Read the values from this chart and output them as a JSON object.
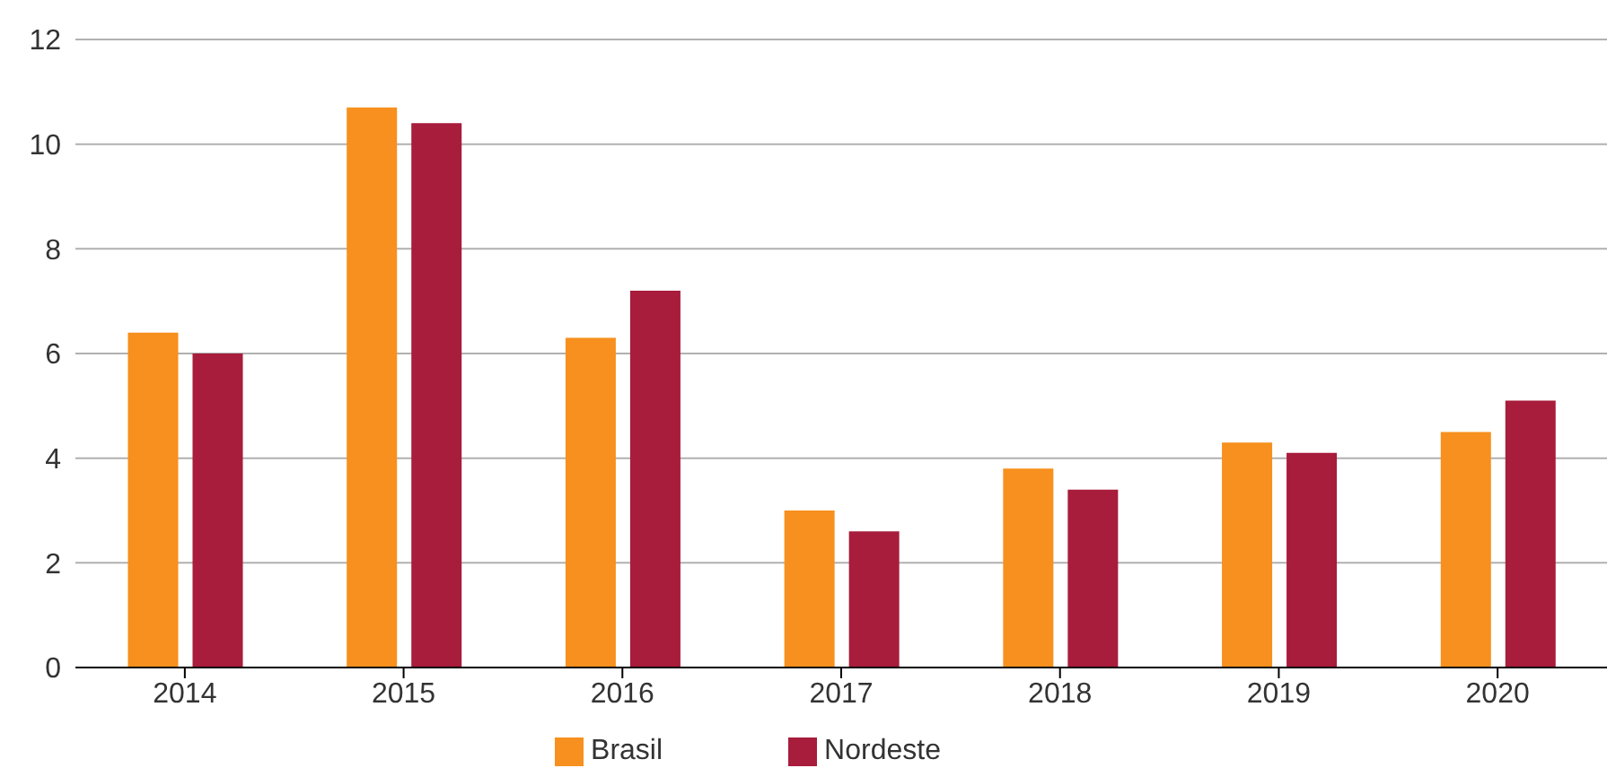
{
  "chart_data": {
    "type": "bar",
    "categories": [
      "2014",
      "2015",
      "2016",
      "2017",
      "2018",
      "2019",
      "2020"
    ],
    "series": [
      {
        "name": "Brasil",
        "color": "#f7901e",
        "values": [
          6.4,
          10.7,
          6.3,
          3.0,
          3.8,
          4.3,
          4.5
        ]
      },
      {
        "name": "Nordeste",
        "color": "#a81c3c",
        "values": [
          6.0,
          10.4,
          7.2,
          2.6,
          3.4,
          4.1,
          5.1
        ]
      }
    ],
    "ylim": [
      0,
      12
    ],
    "yticks": [
      0,
      2,
      4,
      6,
      8,
      10,
      12
    ],
    "grid": "y",
    "legend": "bottom"
  }
}
